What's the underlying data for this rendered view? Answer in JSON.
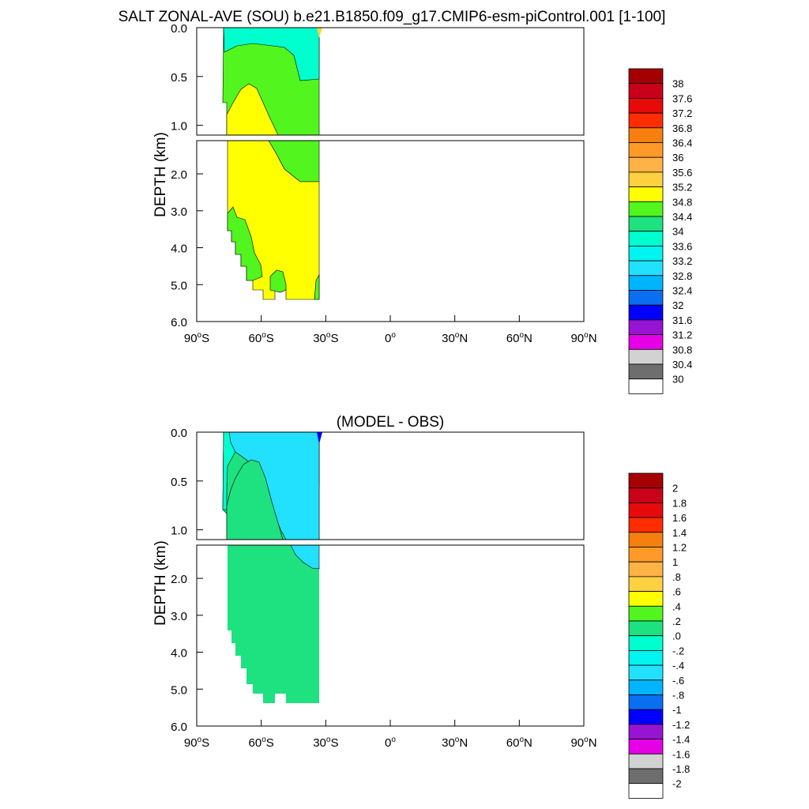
{
  "chart_data": [
    {
      "type": "heatmap",
      "title": "SALT ZONAL-AVE (SOU) b.e21.B1850.f09_g17.CMIP6-esm-piControl.001 [1-100]",
      "ylabel": "DEPTH (km)",
      "xlim": [
        -90,
        90
      ],
      "upper_ylim": [
        0,
        1.1
      ],
      "lower_ylim": [
        1.1,
        6
      ],
      "upper_yticks": [
        "0.0",
        "0.5",
        "1.0"
      ],
      "lower_yticks": [
        "2.0",
        "3.0",
        "4.0",
        "5.0",
        "6.0"
      ],
      "x_ticks": [
        {
          "value": -90,
          "num": "90",
          "sup": "o",
          "hem": "S"
        },
        {
          "value": -60,
          "num": "60",
          "sup": "o",
          "hem": "S"
        },
        {
          "value": -30,
          "num": "30",
          "sup": "o",
          "hem": "S"
        },
        {
          "value": 0,
          "num": "0",
          "sup": "o",
          "hem": ""
        },
        {
          "value": 30,
          "num": "30",
          "sup": "o",
          "hem": "N"
        },
        {
          "value": 60,
          "num": "60",
          "sup": "o",
          "hem": "N"
        },
        {
          "value": 90,
          "num": "90",
          "sup": "o",
          "hem": "N"
        }
      ],
      "grid": false,
      "legend_position": "right",
      "colorbar_labels": [
        "38",
        "37.6",
        "37.2",
        "36.8",
        "36.4",
        "36",
        "35.6",
        "35.2",
        "34.8",
        "34.4",
        "34",
        "33.6",
        "33.2",
        "32.8",
        "32.4",
        "32",
        "31.6",
        "31.2",
        "30.8",
        "30.4",
        "30"
      ],
      "colorbar_colors": [
        "#a50000",
        "#c8001a",
        "#e60a0a",
        "#ff2d00",
        "#f57f0f",
        "#ff9a28",
        "#ffb245",
        "#ffd040",
        "#ffff00",
        "#52f51e",
        "#1ee17f",
        "#00ffcf",
        "#00f5f0",
        "#22e1ff",
        "#00b4ff",
        "#0a6ef0",
        "#0000ff",
        "#9614d2",
        "#e600e6",
        "#d2d2d2",
        "#6e6e6e",
        "#ffffff"
      ],
      "field_regions": [
        {
          "value": "33.6-34.0",
          "color": "#00ffcf",
          "lat": [
            -76,
            -40
          ],
          "depth_km": [
            0,
            0.5
          ]
        },
        {
          "value": "34.4-34.8",
          "color": "#52f51e",
          "lat": [
            -76,
            -34
          ],
          "depth_km": [
            0.1,
            1.9
          ]
        },
        {
          "value": "34.8-35.2",
          "color": "#ffff00",
          "lat": [
            -76,
            -34
          ],
          "depth_km": [
            0.55,
            5.4
          ]
        },
        {
          "value": "34.4-34.8",
          "color": "#52f51e",
          "lat": [
            -76,
            -64
          ],
          "depth_km": [
            2.9,
            5.0
          ]
        }
      ]
    },
    {
      "type": "heatmap",
      "title": "(MODEL - OBS)",
      "ylabel": "DEPTH (km)",
      "xlim": [
        -90,
        90
      ],
      "upper_ylim": [
        0,
        1.1
      ],
      "lower_ylim": [
        1.1,
        6
      ],
      "upper_yticks": [
        "0.0",
        "0.5",
        "1.0"
      ],
      "lower_yticks": [
        "2.0",
        "3.0",
        "4.0",
        "5.0",
        "6.0"
      ],
      "x_ticks": [
        {
          "value": -90,
          "num": "90",
          "sup": "o",
          "hem": "S"
        },
        {
          "value": -60,
          "num": "60",
          "sup": "o",
          "hem": "S"
        },
        {
          "value": -30,
          "num": "30",
          "sup": "o",
          "hem": "S"
        },
        {
          "value": 0,
          "num": "0",
          "sup": "o",
          "hem": ""
        },
        {
          "value": 30,
          "num": "30",
          "sup": "o",
          "hem": "N"
        },
        {
          "value": 60,
          "num": "60",
          "sup": "o",
          "hem": "N"
        },
        {
          "value": 90,
          "num": "90",
          "sup": "o",
          "hem": "N"
        }
      ],
      "grid": false,
      "legend_position": "right",
      "colorbar_labels": [
        "2",
        "1.8",
        "1.6",
        "1.4",
        "1.2",
        "1",
        ".8",
        ".6",
        ".4",
        ".2",
        ".0",
        "-.2",
        "-.4",
        "-.6",
        "-.8",
        "-1",
        "-1.2",
        "-1.4",
        "-1.6",
        "-1.8",
        "-2"
      ],
      "colorbar_colors": [
        "#a50000",
        "#c8001a",
        "#e60a0a",
        "#ff2d00",
        "#f57f0f",
        "#ff9a28",
        "#ffb245",
        "#ffd040",
        "#ffff00",
        "#52f51e",
        "#1ee17f",
        "#00ffcf",
        "#00f5f0",
        "#22e1ff",
        "#00b4ff",
        "#0a6ef0",
        "#0000ff",
        "#9614d2",
        "#e600e6",
        "#d2d2d2",
        "#6e6e6e",
        "#ffffff"
      ],
      "field_regions": [
        {
          "value": "0.0-0.2",
          "color": "#1ee17f",
          "lat": [
            -76,
            -34
          ],
          "depth_km": [
            0.2,
            5.4
          ]
        },
        {
          "value": "-0.2-0.0",
          "color": "#00ffcf",
          "lat": [
            -76,
            -48
          ],
          "depth_km": [
            0,
            0.8
          ]
        },
        {
          "value": "-0.4--0.2",
          "color": "#22e1ff",
          "lat": [
            -70,
            -34
          ],
          "depth_km": [
            0,
            1.5
          ]
        },
        {
          "value": "-1.0--0.8",
          "color": "#0000ff",
          "lat": [
            -35,
            -34
          ],
          "depth_km": [
            0,
            0.05
          ]
        }
      ]
    }
  ]
}
